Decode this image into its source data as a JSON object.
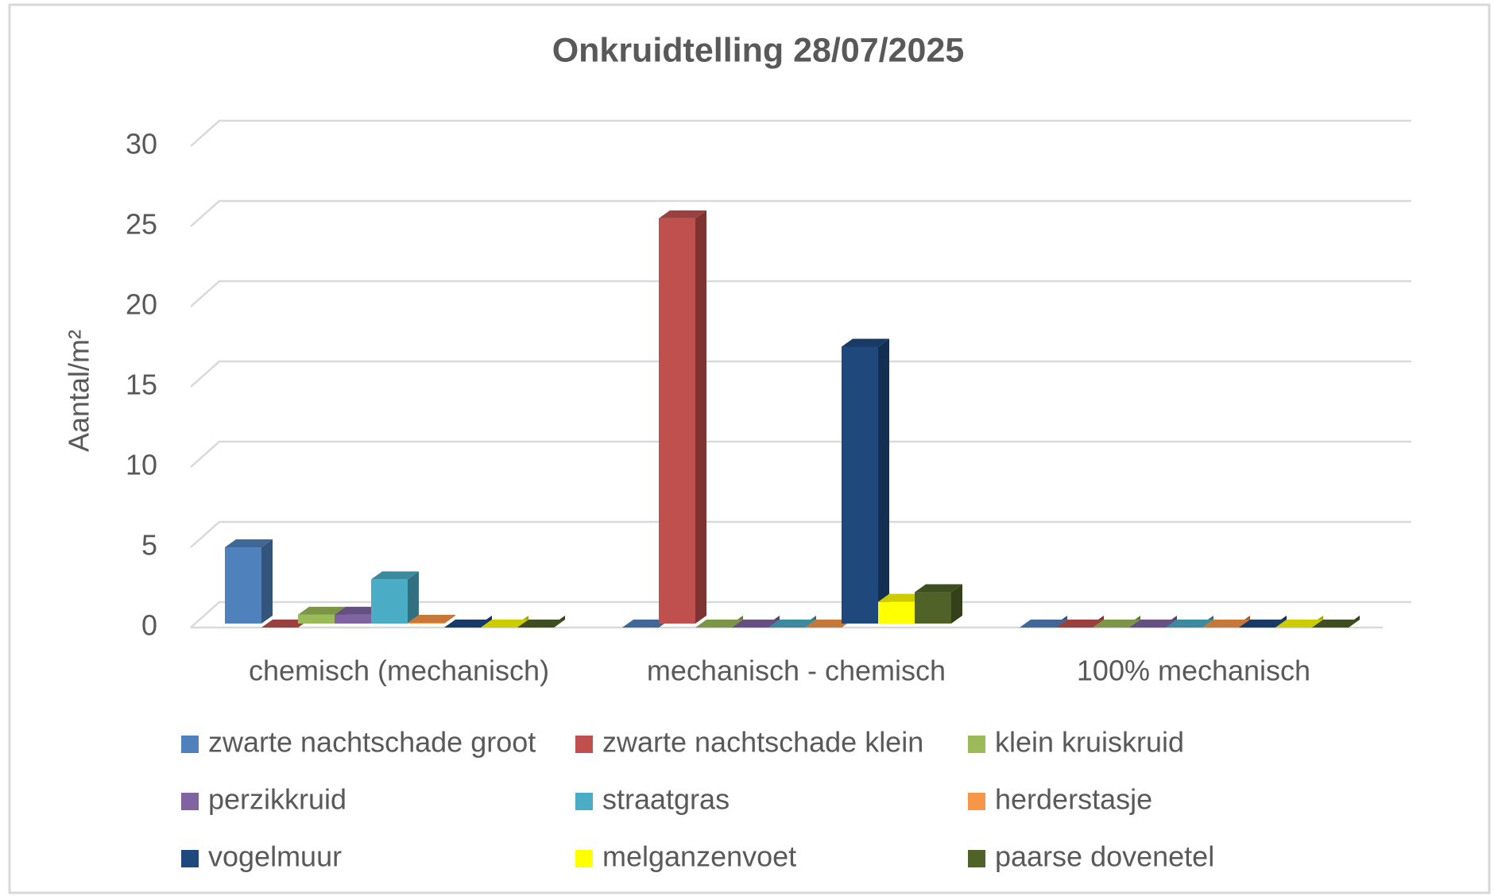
{
  "chart_data": {
    "type": "bar3d",
    "title": "Onkruidtelling 28/07/2025",
    "y_label": "Aantal/m²",
    "categories": [
      "chemisch (mechanisch)",
      "mechanisch - chemisch",
      "100% mechanisch"
    ],
    "series": [
      {
        "name": "zwarte nachtschade groot",
        "color": "#4f81bd",
        "values": [
          5,
          0,
          0
        ]
      },
      {
        "name": "zwarte nachtschade klein",
        "color": "#c0504d",
        "values": [
          0,
          25.5,
          0
        ]
      },
      {
        "name": "klein kruiskruid",
        "color": "#9bbb59",
        "values": [
          0.8,
          0,
          0
        ]
      },
      {
        "name": "perzikkruid",
        "color": "#8064a2",
        "values": [
          0.8,
          0,
          0
        ]
      },
      {
        "name": "straatgras",
        "color": "#4bacc6",
        "values": [
          3,
          0,
          0
        ]
      },
      {
        "name": "herderstasje",
        "color": "#f79646",
        "values": [
          0.3,
          0,
          0
        ]
      },
      {
        "name": "vogelmuur",
        "color": "#1f497d",
        "values": [
          0,
          17.5,
          0
        ]
      },
      {
        "name": "melganzenvoet",
        "color": "#ffff00",
        "values": [
          0,
          1.6,
          0
        ]
      },
      {
        "name": "paarse dovenetel",
        "color": "#4f6228",
        "values": [
          0,
          2.2,
          0
        ]
      }
    ],
    "ylim": [
      0,
      30
    ],
    "yticks": [
      0,
      5,
      10,
      15,
      20,
      25,
      30
    ],
    "grid": true,
    "legend": "bottom"
  }
}
